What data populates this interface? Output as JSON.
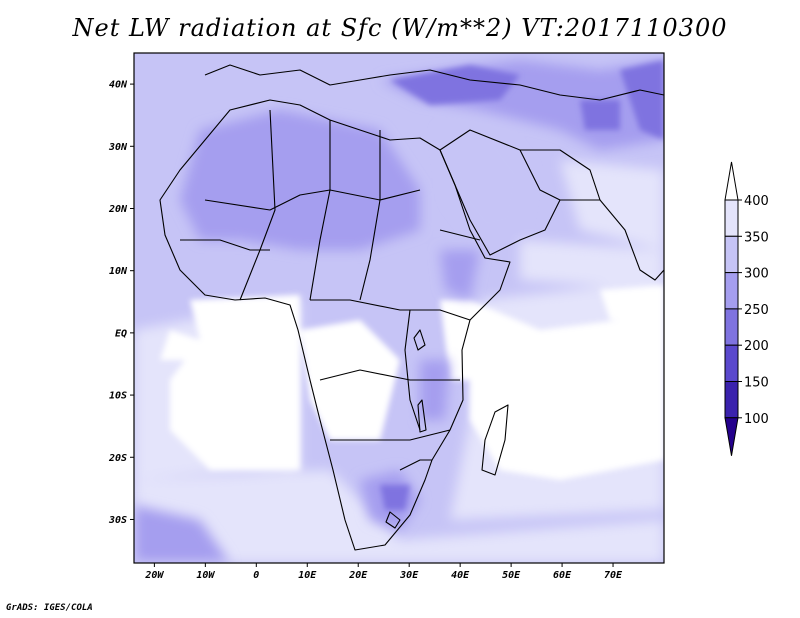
{
  "title": "Net LW radiation at Sfc (W/m**2) VT:2017110300",
  "credit": "GrADS: IGES/COLA",
  "map": {
    "lon_range": [
      -24,
      80
    ],
    "lat_range": [
      -37,
      45
    ],
    "lon_ticks": [
      {
        "value": -20,
        "label": "20W"
      },
      {
        "value": -10,
        "label": "10W"
      },
      {
        "value": 0,
        "label": "0"
      },
      {
        "value": 10,
        "label": "10E"
      },
      {
        "value": 20,
        "label": "20E"
      },
      {
        "value": 30,
        "label": "30E"
      },
      {
        "value": 40,
        "label": "40E"
      },
      {
        "value": 50,
        "label": "50E"
      },
      {
        "value": 60,
        "label": "60E"
      },
      {
        "value": 70,
        "label": "70E"
      }
    ],
    "lat_ticks": [
      {
        "value": 40,
        "label": "40N"
      },
      {
        "value": 30,
        "label": "30N"
      },
      {
        "value": 20,
        "label": "20N"
      },
      {
        "value": 10,
        "label": "10N"
      },
      {
        "value": 0,
        "label": "EQ"
      },
      {
        "value": -10,
        "label": "10S"
      },
      {
        "value": -20,
        "label": "20S"
      },
      {
        "value": -30,
        "label": "30S"
      }
    ]
  },
  "colorbar": {
    "levels": [
      {
        "label": "400",
        "value": 400
      },
      {
        "label": "350",
        "value": 350
      },
      {
        "label": "300",
        "value": 300
      },
      {
        "label": "250",
        "value": 250
      },
      {
        "label": "200",
        "value": 200
      },
      {
        "label": "150",
        "value": 150
      },
      {
        "label": "100",
        "value": 100
      }
    ],
    "colors": [
      "#ffffff",
      "#e4e4fb",
      "#c6c4f6",
      "#a59eef",
      "#7f73e0",
      "#5a48cd",
      "#3a22ad",
      "#24008c"
    ]
  }
}
